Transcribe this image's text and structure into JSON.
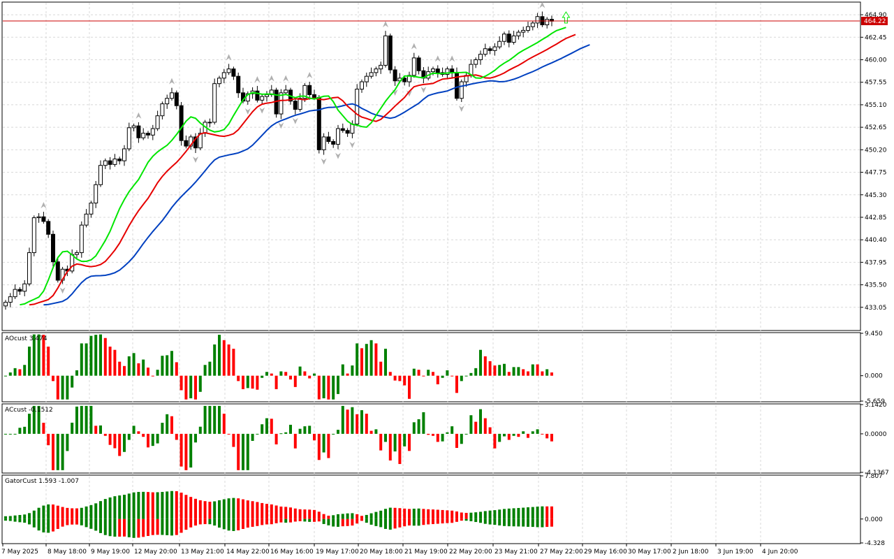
{
  "chart_data": [
    {
      "type": "candlestick",
      "panel": "main",
      "price_ticks": [
        "464.90",
        "462.45",
        "460.00",
        "457.55",
        "455.10",
        "452.65",
        "450.20",
        "447.75",
        "445.30",
        "442.85",
        "440.40",
        "437.95",
        "435.50",
        "433.05"
      ],
      "ylim": [
        430.6,
        466.2
      ],
      "current_price": "464.22",
      "x_labels": [
        "7 May 2025",
        "8 May 18:00",
        "9 May 19:00",
        "12 May 20:00",
        "13 May 21:00",
        "14 May 22:00",
        "16 May 16:00",
        "19 May 17:00",
        "20 May 18:00",
        "21 May 19:00",
        "22 May 20:00",
        "23 May 21:00",
        "27 May 22:00",
        "29 May 16:00",
        "30 May 17:00",
        "2 Jun 18:00",
        "3 Jun 19:00",
        "4 Jun 20:00"
      ],
      "closes": [
        433.6,
        434.2,
        435.0,
        434.8,
        435.6,
        439.0,
        442.8,
        442.9,
        442.4,
        441.0,
        438.0,
        436.0,
        437.2,
        437.0,
        438.8,
        439.0,
        442.0,
        443.2,
        444.4,
        446.4,
        448.5,
        449.0,
        448.6,
        449.2,
        449.0,
        450.3,
        452.6,
        452.8,
        451.5,
        452.0,
        451.8,
        452.5,
        453.9,
        455.2,
        455.8,
        456.4,
        455.0,
        451.2,
        450.6,
        451.6,
        450.4,
        452.0,
        453.2,
        453.2,
        457.4,
        458.0,
        458.6,
        459.0,
        458.2,
        456.4,
        455.5,
        456.3,
        456.6,
        455.6,
        456.0,
        456.2,
        456.7,
        454.1,
        456.4,
        456.7,
        455.5,
        454.6,
        455.8,
        457.2,
        456.2,
        455.9,
        450.2,
        451.6,
        451.1,
        450.8,
        452.5,
        452.3,
        452.0,
        453.0,
        456.8,
        457.6,
        458.2,
        458.6,
        459.0,
        459.4,
        462.6,
        458.9,
        457.7,
        458.0,
        457.6,
        458.3,
        460.2,
        458.8,
        458.0,
        458.7,
        459.0,
        458.6,
        458.4,
        459.0,
        458.6,
        455.8,
        457.6,
        458.3,
        459.5,
        460.0,
        460.6,
        461.2,
        461.0,
        461.4,
        462.0,
        462.8,
        461.9,
        462.6,
        463.0,
        463.2,
        463.6,
        464.0,
        464.7,
        463.8,
        464.4,
        464.2
      ]
    },
    {
      "type": "histogram",
      "panel": "ao",
      "title": "AOcust 3.474",
      "ticks": [
        "9.450",
        "0.000",
        "-5.659"
      ],
      "ylim": [
        -5.659,
        9.45
      ]
    },
    {
      "type": "histogram",
      "panel": "ac",
      "title": "ACcust -0.1512",
      "ticks": [
        "3.1420",
        "0.0000",
        "-4.1367"
      ],
      "ylim": [
        -4.1367,
        3.142
      ]
    },
    {
      "type": "histogram",
      "panel": "gator",
      "title": "GatorCust 1.593 -1.007",
      "ticks": [
        "7.807",
        "0.000",
        "-4.328"
      ],
      "ylim": [
        -4.328,
        7.807
      ]
    }
  ],
  "colors": {
    "up": "#008000",
    "down": "#ff0000",
    "lips": "#00e600",
    "teeth": "#e60000",
    "jaw": "#0040c0",
    "price_line": "#cc0000"
  }
}
